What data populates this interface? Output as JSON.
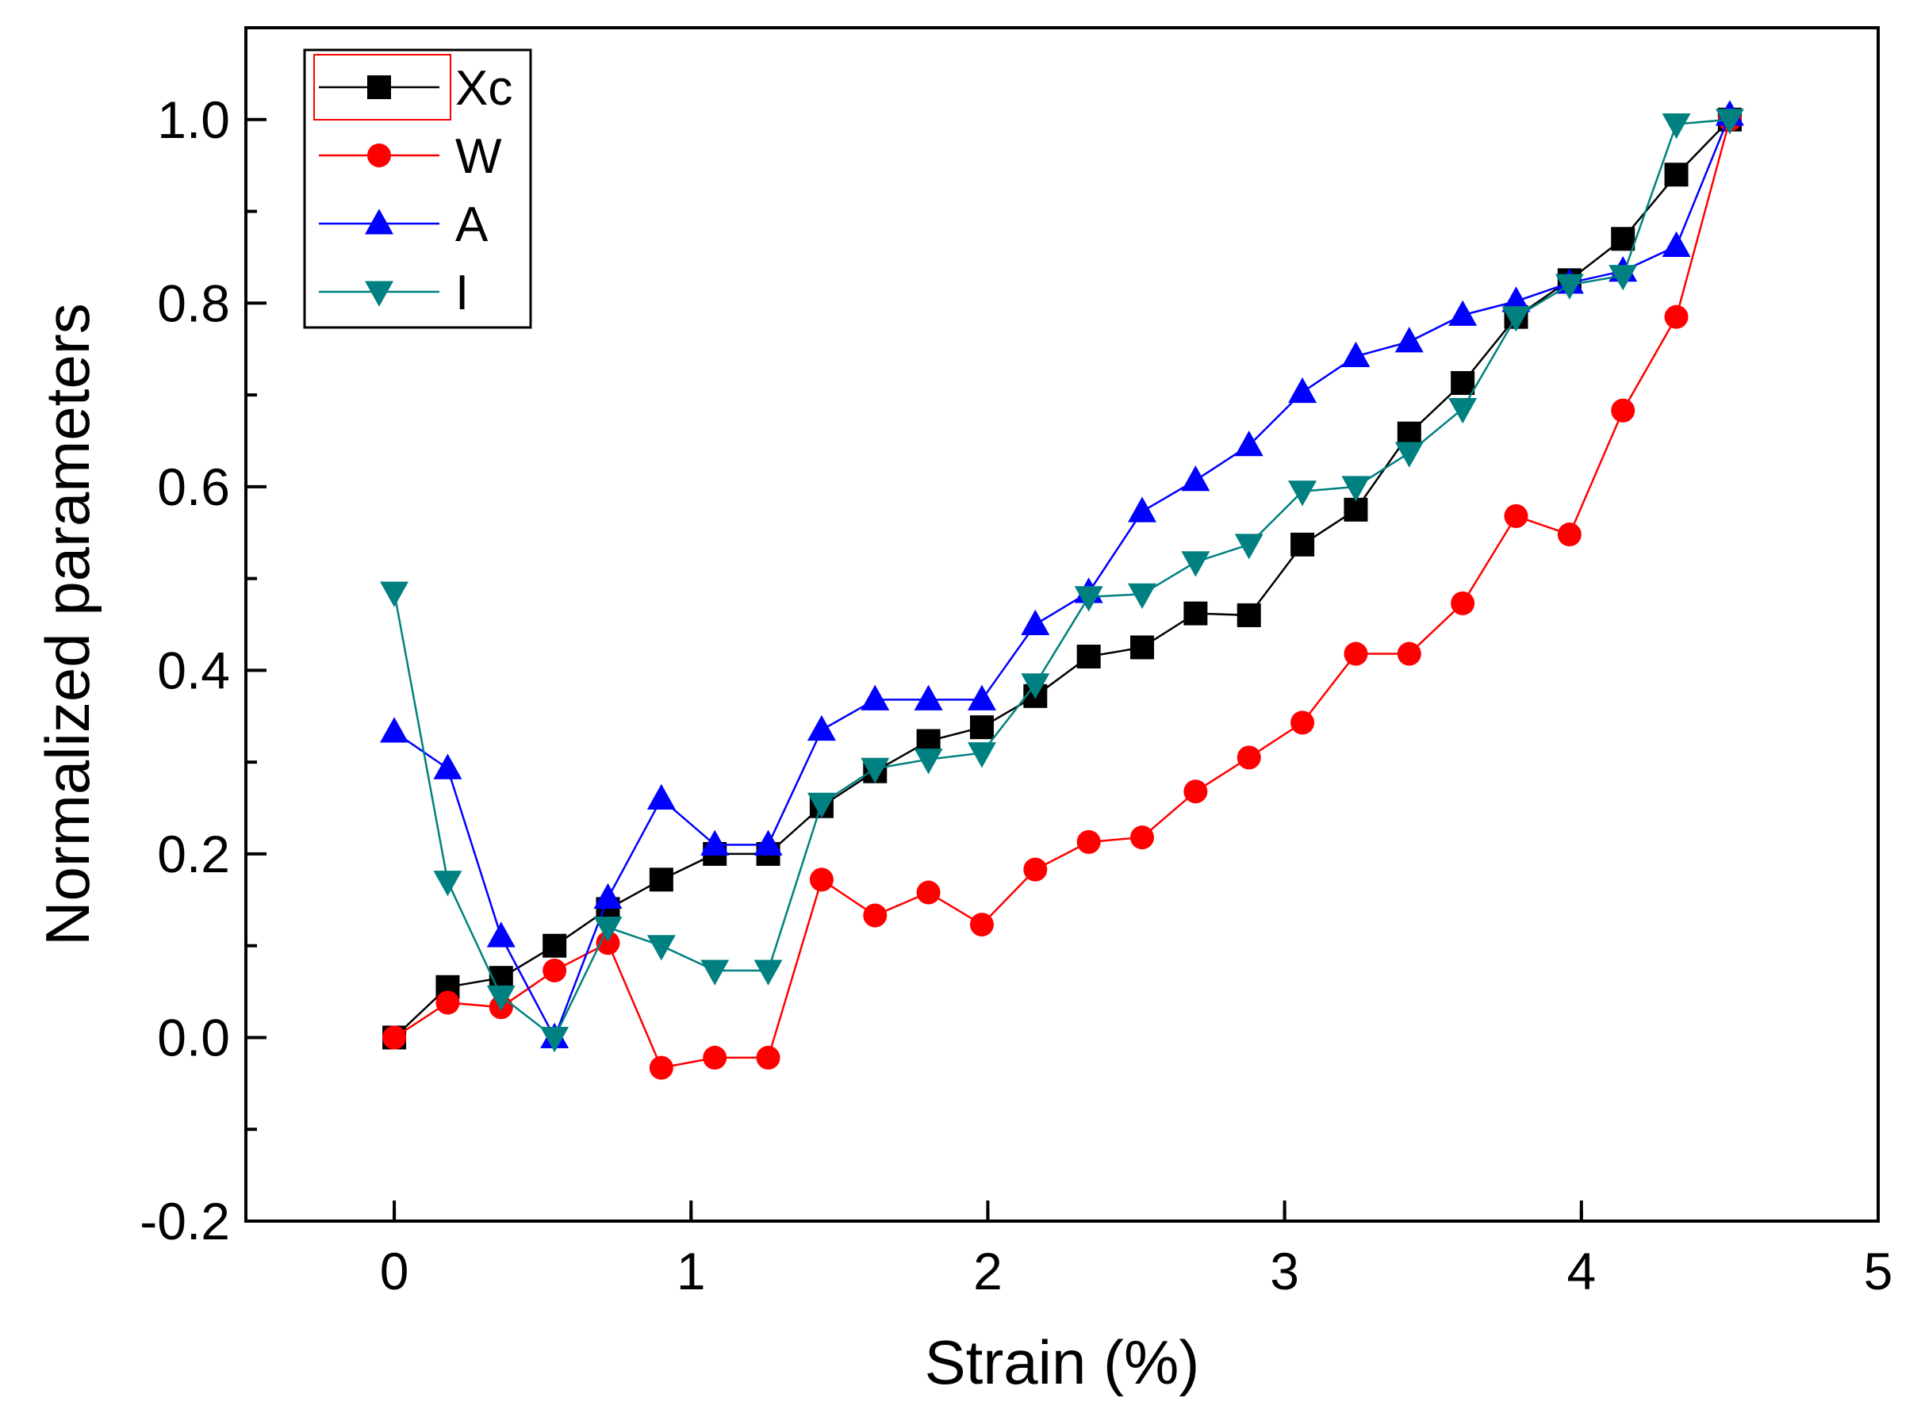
{
  "chart_data": {
    "type": "line",
    "title": "",
    "xlabel": "Strain (%)",
    "ylabel": "Normalized parameters",
    "xlim": [
      -0.5,
      5
    ],
    "ylim": [
      -0.2,
      1.1
    ],
    "xticks": [
      0,
      1,
      2,
      3,
      4,
      5
    ],
    "xtick_labels": [
      "0",
      "1",
      "2",
      "3",
      "4",
      "5"
    ],
    "yticks": [
      -0.2,
      0.0,
      0.2,
      0.4,
      0.6,
      0.8,
      1.0
    ],
    "ytick_labels": [
      "-0.2",
      "0.0",
      "0.2",
      "0.4",
      "0.6",
      "0.8",
      "1.0"
    ],
    "legend_position": "top-left",
    "x": [
      0,
      0.18,
      0.36,
      0.54,
      0.72,
      0.9,
      1.08,
      1.26,
      1.44,
      1.62,
      1.8,
      1.98,
      2.16,
      2.34,
      2.52,
      2.7,
      2.88,
      3.06,
      3.24,
      3.42,
      3.6,
      3.78,
      3.96,
      4.14,
      4.32,
      4.5
    ],
    "series": [
      {
        "name": "Xc",
        "color": "#000000",
        "marker": "square",
        "values": [
          0.0,
          0.055,
          0.065,
          0.1,
          0.14,
          0.172,
          0.2,
          0.2,
          0.252,
          0.29,
          0.323,
          0.338,
          0.372,
          0.415,
          0.425,
          0.462,
          0.46,
          0.537,
          0.575,
          0.658,
          0.713,
          0.785,
          0.825,
          0.87,
          0.94,
          1.0
        ]
      },
      {
        "name": "W",
        "color": "#ff0000",
        "marker": "circle",
        "values": [
          0.0,
          0.038,
          0.033,
          0.073,
          0.103,
          -0.033,
          -0.022,
          -0.022,
          0.172,
          0.133,
          0.158,
          0.123,
          0.183,
          0.213,
          0.218,
          0.268,
          0.305,
          0.343,
          0.418,
          0.418,
          0.473,
          0.568,
          0.548,
          0.683,
          0.785,
          1.0
        ]
      },
      {
        "name": "A",
        "color": "#0000ff",
        "marker": "triangle-up",
        "values": [
          0.333,
          0.293,
          0.11,
          0.0,
          0.152,
          0.26,
          0.21,
          0.21,
          0.335,
          0.368,
          0.368,
          0.368,
          0.45,
          0.485,
          0.573,
          0.607,
          0.645,
          0.703,
          0.742,
          0.758,
          0.787,
          0.802,
          0.822,
          0.835,
          0.862,
          1.005
        ]
      },
      {
        "name": "I",
        "color": "#008080",
        "marker": "triangle-down",
        "values": [
          0.485,
          0.17,
          0.045,
          0.0,
          0.12,
          0.1,
          0.073,
          0.073,
          0.255,
          0.293,
          0.303,
          0.31,
          0.385,
          0.48,
          0.483,
          0.518,
          0.537,
          0.595,
          0.6,
          0.637,
          0.685,
          0.785,
          0.82,
          0.83,
          0.995,
          1.0
        ]
      }
    ]
  }
}
